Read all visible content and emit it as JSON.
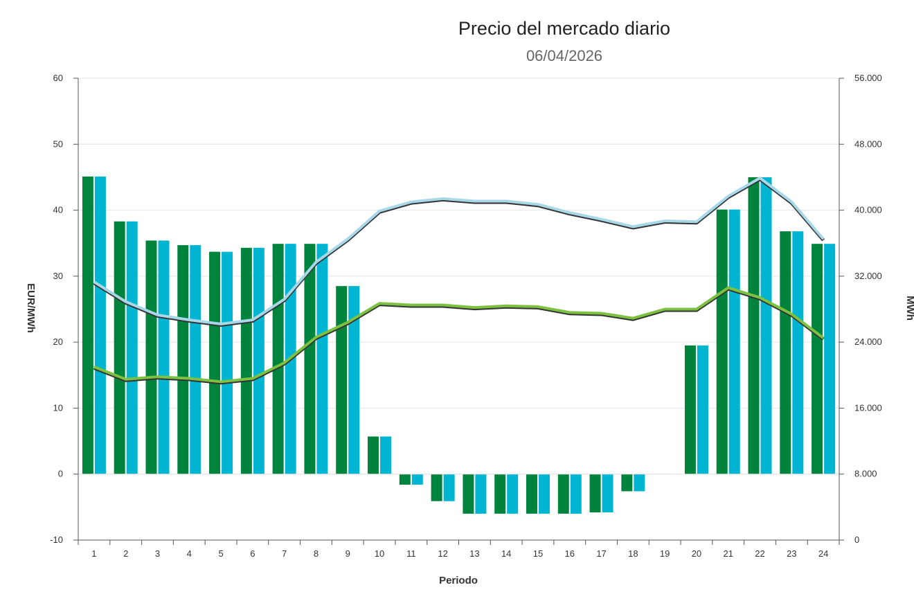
{
  "chart_data": {
    "type": "bar",
    "title": "Precio del mercado diario",
    "subtitle": "06/04/2026",
    "xlabel": "Periodo",
    "ylabel": "EUR/MWh",
    "y2label": "MWh",
    "categories": [
      "1",
      "2",
      "3",
      "4",
      "5",
      "6",
      "7",
      "8",
      "9",
      "10",
      "11",
      "12",
      "13",
      "14",
      "15",
      "16",
      "17",
      "18",
      "19",
      "20",
      "21",
      "22",
      "23",
      "24"
    ],
    "ylim": [
      -10,
      60
    ],
    "yticks": [
      "-10",
      "0",
      "10",
      "20",
      "30",
      "40",
      "50",
      "60"
    ],
    "y2lim": [
      0,
      56000
    ],
    "y2ticks": [
      "0",
      "8.000",
      "16.000",
      "24.000",
      "32.000",
      "40.000",
      "48.000",
      "56.000"
    ],
    "grid": true,
    "series": [
      {
        "type": "bar",
        "axis": "left",
        "color": "#00843d",
        "values": [
          45.1,
          38.3,
          35.4,
          34.7,
          33.7,
          34.3,
          34.9,
          34.9,
          28.5,
          5.7,
          -1.6,
          -4.1,
          -6.0,
          -6.0,
          -6.0,
          -6.0,
          -5.8,
          -2.6,
          0,
          19.5,
          40.1,
          45.0,
          36.8,
          34.9
        ]
      },
      {
        "type": "bar",
        "axis": "left",
        "color": "#00b5d1",
        "values": [
          45.1,
          38.3,
          35.4,
          34.7,
          33.7,
          34.3,
          34.9,
          34.9,
          28.5,
          5.7,
          -1.6,
          -4.1,
          -6.0,
          -6.0,
          -6.0,
          -6.0,
          -5.8,
          -2.6,
          0,
          19.5,
          40.1,
          45.0,
          36.8,
          34.9
        ]
      },
      {
        "type": "line",
        "axis": "right",
        "color": "#a8d8e8",
        "values": [
          31300,
          28900,
          27300,
          26700,
          26200,
          26700,
          29200,
          33700,
          36500,
          39900,
          41000,
          41400,
          41100,
          41100,
          40700,
          39700,
          38900,
          38000,
          38700,
          38600,
          41700,
          43900,
          41000,
          36500
        ]
      },
      {
        "type": "line",
        "axis": "right",
        "color": "#7dc142",
        "values": [
          21000,
          19500,
          19800,
          19600,
          19200,
          19600,
          21500,
          24600,
          26400,
          28700,
          28500,
          28500,
          28200,
          28400,
          28300,
          27600,
          27500,
          26900,
          28000,
          28000,
          30600,
          29400,
          27400,
          24500
        ]
      }
    ]
  }
}
